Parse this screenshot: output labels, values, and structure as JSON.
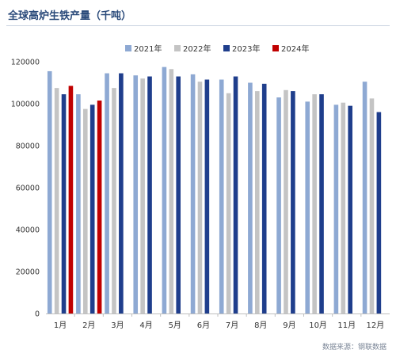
{
  "title": "全球高炉生铁产量（千吨）",
  "source": "数据来源：钢联数据",
  "colors": {
    "2021": "#8ea9d3",
    "2022": "#c4c4c4",
    "2023": "#1f3e8c",
    "2024": "#c00000",
    "axis": "#bfbfbf",
    "tick_text": "#333333",
    "title": "#2a4a7a"
  },
  "chart_data": {
    "type": "bar",
    "title": "全球高炉生铁产量（千吨）",
    "xlabel": "",
    "ylabel": "",
    "categories": [
      "1月",
      "2月",
      "3月",
      "4月",
      "5月",
      "6月",
      "7月",
      "8月",
      "9月",
      "10月",
      "11月",
      "12月"
    ],
    "ylim": [
      0,
      120000
    ],
    "yticks": [
      0,
      20000,
      40000,
      60000,
      80000,
      100000,
      120000
    ],
    "grid": false,
    "legend_position": "top-center",
    "series": [
      {
        "name": "2021年",
        "color": "#8ea9d3",
        "values": [
          115500,
          104500,
          114500,
          113500,
          117500,
          114000,
          111500,
          110000,
          103000,
          101000,
          99500,
          110500
        ]
      },
      {
        "name": "2022年",
        "color": "#c4c4c4",
        "values": [
          107500,
          97500,
          107500,
          112000,
          116500,
          110500,
          105000,
          106000,
          106500,
          104500,
          100500,
          102500
        ]
      },
      {
        "name": "2023年",
        "color": "#1f3e8c",
        "values": [
          104500,
          99500,
          114500,
          113000,
          113000,
          111500,
          113000,
          109500,
          106000,
          104500,
          99000,
          96000
        ]
      },
      {
        "name": "2024年",
        "color": "#c00000",
        "values": [
          108500,
          101500,
          null,
          null,
          null,
          null,
          null,
          null,
          null,
          null,
          null,
          null
        ]
      }
    ]
  }
}
